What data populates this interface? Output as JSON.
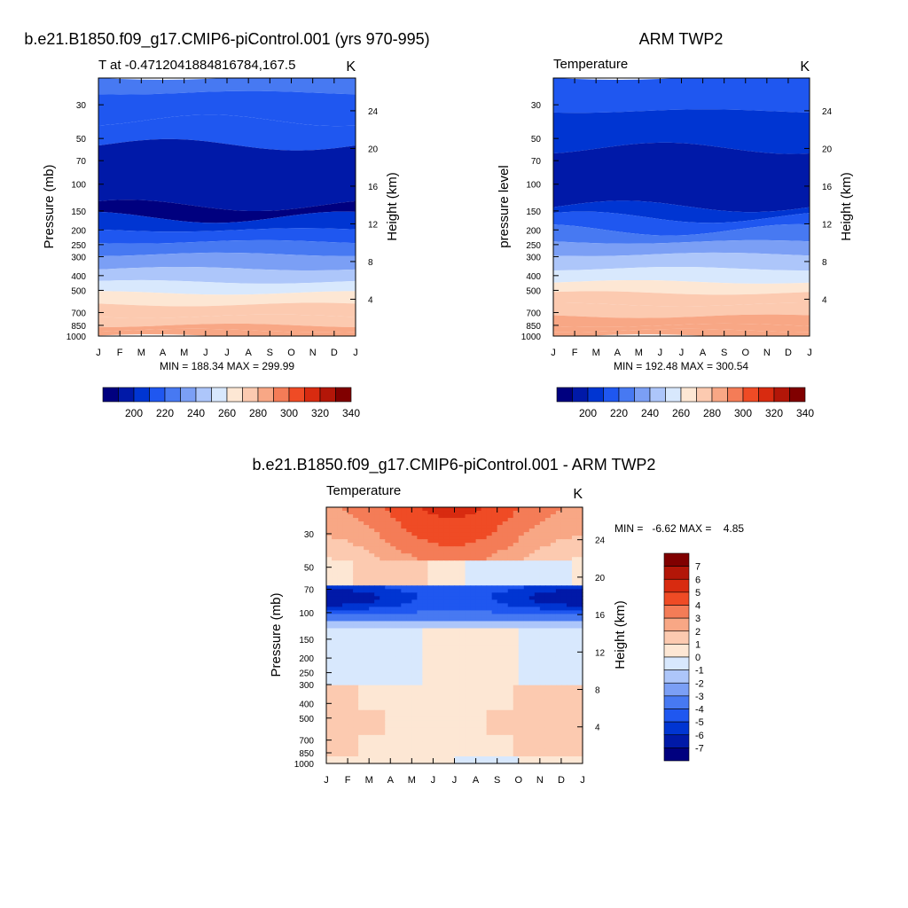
{
  "colors": {
    "abs_levels": [
      "#00007f",
      "#0019a8",
      "#0035d2",
      "#1f57f0",
      "#4779f2",
      "#7b9ff5",
      "#adc6fa",
      "#d8e8fd",
      "#fde7d4",
      "#fccab0",
      "#f8a785",
      "#f47c57",
      "#ef4b25",
      "#d82b10",
      "#b31608",
      "#800000"
    ],
    "diff_levels": [
      "#00007f",
      "#0019a8",
      "#0035d2",
      "#1f57f0",
      "#4779f2",
      "#7b9ff5",
      "#adc6fa",
      "#d8e8fd",
      "#fde7d4",
      "#fccab0",
      "#f8a785",
      "#f47c57",
      "#ef4b25",
      "#d82b10",
      "#b31608",
      "#800000"
    ]
  },
  "chart_data": [
    {
      "type": "heatmap",
      "main_title": "b.e21.B1850.f09_g17.CMIP6-piControl.001 (yrs 970-995)",
      "left_title": "T at -0.47120418848167­84,167.5",
      "left_title_plain": "T at -0.4712041884816784,167.5",
      "right_title": "K",
      "ylabel": "Pressure (mb)",
      "ylabel_right": "Height (km)",
      "x_ticks": [
        "J",
        "F",
        "M",
        "A",
        "M",
        "J",
        "J",
        "A",
        "S",
        "O",
        "N",
        "D",
        "J"
      ],
      "y_ticks": [
        30,
        50,
        70,
        100,
        150,
        200,
        250,
        300,
        400,
        500,
        700,
        850,
        1000
      ],
      "height_ticks": [
        24,
        20,
        16,
        12,
        8,
        4
      ],
      "ylim": [
        1000,
        20
      ],
      "stats": "MIN = 188.34 MAX = 299.99",
      "min": 188.34,
      "max": 299.99,
      "colorbar_ticks": [
        "200",
        "220",
        "240",
        "260",
        "280",
        "300",
        "320",
        "340"
      ],
      "bands_p": [
        20,
        25,
        38,
        55,
        138,
        165,
        200,
        240,
        290,
        360,
        440,
        520,
        620,
        740,
        850,
        920,
        1000
      ],
      "bands_T": [
        230,
        227,
        222,
        205,
        196,
        212,
        220,
        230,
        242,
        252,
        262,
        274,
        282,
        288,
        292,
        296
      ]
    },
    {
      "type": "heatmap",
      "main_title": "ARM TWP2",
      "left_title": "Temperature",
      "right_title": "K",
      "ylabel": "pressure level",
      "ylabel_right": "Height (km)",
      "x_ticks": [
        "J",
        "F",
        "M",
        "A",
        "M",
        "J",
        "J",
        "A",
        "S",
        "O",
        "N",
        "D",
        "J"
      ],
      "y_ticks": [
        30,
        50,
        70,
        100,
        150,
        200,
        250,
        300,
        400,
        500,
        700,
        850,
        1000
      ],
      "height_ticks": [
        24,
        20,
        16,
        12,
        8,
        4
      ],
      "ylim": [
        1000,
        20
      ],
      "stats": "MIN = 192.48 MAX = 300.54",
      "min": 192.48,
      "max": 300.54,
      "colorbar_ticks": [
        "200",
        "220",
        "240",
        "260",
        "280",
        "300",
        "320",
        "340"
      ],
      "bands_p": [
        20,
        33,
        58,
        140,
        165,
        200,
        240,
        290,
        360,
        440,
        520,
        620,
        740,
        850,
        920,
        1000
      ],
      "bands_T": [
        225,
        217,
        200,
        212,
        220,
        230,
        242,
        252,
        262,
        274,
        282,
        288,
        292,
        296,
        298
      ]
    },
    {
      "type": "heatmap",
      "main_title": "b.e21.B1850.f09_g17.CMIP6-piControl.001 - ARM TWP2",
      "left_title": "Temperature",
      "right_title": "K",
      "ylabel": "Pressure (mb)",
      "ylabel_right": "Height (km)",
      "x_ticks": [
        "J",
        "F",
        "M",
        "A",
        "M",
        "J",
        "J",
        "A",
        "S",
        "O",
        "N",
        "D",
        "J"
      ],
      "y_ticks": [
        30,
        50,
        70,
        100,
        150,
        200,
        250,
        300,
        400,
        500,
        700,
        850,
        1000
      ],
      "height_ticks": [
        24,
        20,
        16,
        12,
        8,
        4
      ],
      "ylim": [
        1000,
        20
      ],
      "stats": "MIN =   -6.62 MAX =    4.85",
      "min": -6.62,
      "max": 4.85,
      "colorbar_ticks": [
        "7",
        "6",
        "5",
        "4",
        "3",
        "2",
        "1",
        "0",
        "-1",
        "-2",
        "-3",
        "-4",
        "-5",
        "-6",
        "-7"
      ]
    }
  ]
}
